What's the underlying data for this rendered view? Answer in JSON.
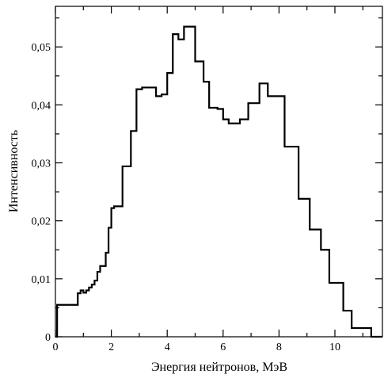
{
  "chart_data": {
    "type": "line",
    "step": "post",
    "xlabel": "Энергия нейтронов, МэВ",
    "ylabel": "Интенсивность",
    "xlim": [
      0,
      11.7
    ],
    "ylim": [
      0,
      0.057
    ],
    "xticks": [
      0,
      2,
      4,
      6,
      8,
      10
    ],
    "xtick_labels": [
      "0",
      "2",
      "4",
      "6",
      "8",
      "10"
    ],
    "yticks": [
      0,
      0.01,
      0.02,
      0.03,
      0.04,
      0.05
    ],
    "ytick_labels": [
      "0",
      "0,01",
      "0,02",
      "0,03",
      "0,04",
      "0,05"
    ],
    "grid": false,
    "series": [
      {
        "x": [
          0,
          0.06,
          0.8,
          0.9,
          1.0,
          1.1,
          1.2,
          1.3,
          1.4,
          1.5,
          1.6,
          1.8,
          1.9,
          2.0,
          2.1,
          2.4,
          2.7,
          2.9,
          3.1,
          3.3,
          3.6,
          3.8,
          4.0,
          4.2,
          4.4,
          4.6,
          4.8,
          5.0,
          5.3,
          5.5,
          5.8,
          6.0,
          6.2,
          6.6,
          6.9,
          7.3,
          7.6,
          8.1,
          8.2,
          8.7,
          9.1,
          9.5,
          9.8,
          10.3,
          10.6,
          11.3,
          11.7
        ],
        "y": [
          0.0,
          0.0055,
          0.0075,
          0.008,
          0.0076,
          0.008,
          0.0085,
          0.009,
          0.0097,
          0.0112,
          0.0122,
          0.0145,
          0.0188,
          0.0222,
          0.0225,
          0.0294,
          0.0355,
          0.0427,
          0.043,
          0.043,
          0.0415,
          0.0418,
          0.0455,
          0.0522,
          0.0513,
          0.0535,
          0.0535,
          0.0475,
          0.044,
          0.0395,
          0.0393,
          0.0375,
          0.0368,
          0.0375,
          0.0403,
          0.0437,
          0.0415,
          0.0415,
          0.0328,
          0.0238,
          0.0185,
          0.015,
          0.0093,
          0.0045,
          0.0015,
          0.0,
          0.0
        ]
      }
    ]
  }
}
